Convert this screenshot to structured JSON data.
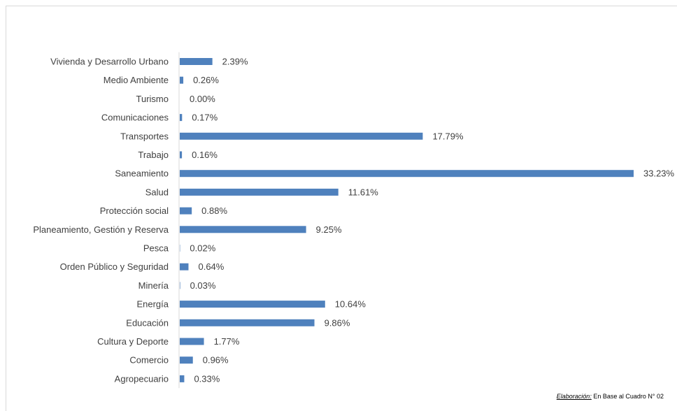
{
  "chart_data": {
    "type": "bar",
    "orientation": "horizontal",
    "title": "",
    "xlabel": "",
    "ylabel": "",
    "categories": [
      "Vivienda y Desarrollo Urbano",
      "Medio Ambiente",
      "Turismo",
      "Comunicaciones",
      "Transportes",
      "Trabajo",
      "Saneamiento",
      "Salud",
      "Protección social",
      "Planeamiento, Gestión y Reserva",
      "Pesca",
      "Orden Público y Seguridad",
      "Minería",
      "Energía",
      "Educación",
      "Cultura y Deporte",
      "Comercio",
      "Agropecuario"
    ],
    "values": [
      2.39,
      0.26,
      0.0,
      0.17,
      17.79,
      0.16,
      33.23,
      11.61,
      0.88,
      9.25,
      0.02,
      0.64,
      0.03,
      10.64,
      9.86,
      1.77,
      0.96,
      0.33
    ],
    "value_labels": [
      "2.39%",
      "0.26%",
      "0.00%",
      "0.17%",
      "17.79%",
      "0.16%",
      "33.23%",
      "11.61%",
      "0.88%",
      "9.25%",
      "0.02%",
      "0.64%",
      "0.03%",
      "10.64%",
      "9.86%",
      "1.77%",
      "0.96%",
      "0.33%"
    ],
    "xlim": [
      0,
      33.23
    ],
    "grid": false,
    "legend": "none",
    "bar_color": "#4f81bd",
    "axis_color": "#d9d9d9"
  },
  "footnote": {
    "label": "Elaboración:",
    "text": " En Base al Cuadro N° 02"
  }
}
